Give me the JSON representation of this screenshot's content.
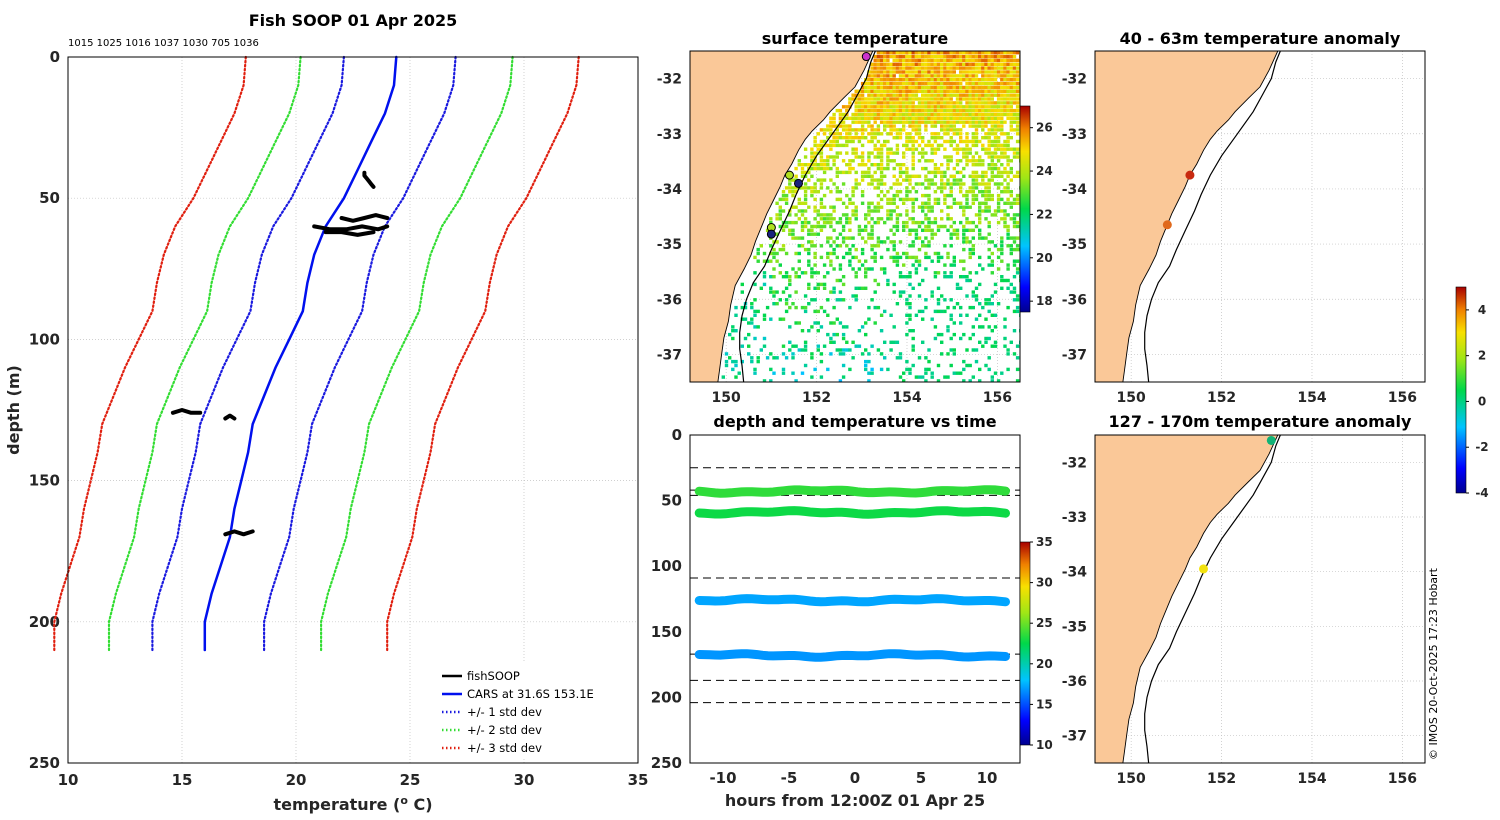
{
  "figure_title": "Fish SOOP 01 Apr 2025",
  "copyright": "© IMOS 20-Oct-2025 17:23 Hobart",
  "colors": {
    "land": "#fac898",
    "grid": "#c0c0c0",
    "cars": "#0010ee",
    "std1": "#1a1adf",
    "std2": "#33dd33",
    "std3": "#e02010",
    "obs": "#000000"
  },
  "chart_data": [
    {
      "id": "profile",
      "type": "line",
      "title": "Fish SOOP 01 Apr 2025",
      "xlabel": "temperature (",
      "xlabel_sup": "o",
      "xlabel_tail": " C)",
      "ylabel": "depth (m)",
      "xlim": [
        10,
        35
      ],
      "ylim": [
        0,
        250
      ],
      "y_inverted": true,
      "xticks": [
        10,
        15,
        20,
        25,
        30,
        35
      ],
      "yticks": [
        0,
        50,
        100,
        150,
        200,
        250
      ],
      "grid": true,
      "top_labels": "1015 1025 1016 1037 1030 705 1036",
      "cars_depth": [
        0,
        10,
        20,
        30,
        40,
        50,
        60,
        70,
        80,
        90,
        100,
        110,
        120,
        130,
        140,
        150,
        160,
        170,
        180,
        190,
        200,
        210
      ],
      "cars_temp": [
        24.4,
        24.3,
        23.9,
        23.3,
        22.7,
        22.1,
        21.3,
        20.8,
        20.5,
        20.3,
        19.7,
        19.1,
        18.6,
        18.1,
        17.9,
        17.6,
        17.3,
        17.1,
        16.7,
        16.3,
        16.0,
        16.0
      ],
      "std_offsets": [
        -6.6,
        -4.2,
        -2.3,
        2.6,
        5.1,
        8.0
      ],
      "std_colors": [
        "std3",
        "std2",
        "std1",
        "std1",
        "std2",
        "std3"
      ],
      "observations": [
        {
          "t": [
            23.0,
            23.0,
            23.1,
            23.2,
            23.3,
            23.4
          ],
          "d": [
            41,
            42,
            43,
            44,
            45,
            46
          ]
        },
        {
          "t": [
            22.0,
            22.5,
            23.0,
            23.5,
            24.0
          ],
          "d": [
            57,
            58,
            57,
            56,
            57
          ]
        },
        {
          "t": [
            20.8,
            21.5,
            22.2,
            22.9,
            23.6,
            24.0
          ],
          "d": [
            60,
            61,
            61,
            60,
            61,
            60
          ]
        },
        {
          "t": [
            21.3,
            22.0,
            22.7,
            23.4
          ],
          "d": [
            62,
            62,
            63,
            62
          ]
        },
        {
          "t": [
            14.6,
            15.0,
            15.4,
            15.8
          ],
          "d": [
            126,
            125,
            126,
            126
          ]
        },
        {
          "t": [
            16.9,
            17.1,
            17.3
          ],
          "d": [
            128,
            127,
            128
          ]
        },
        {
          "t": [
            16.9,
            17.3,
            17.7,
            18.1
          ],
          "d": [
            169,
            168,
            169,
            168
          ]
        }
      ],
      "legend": {
        "placement": "bottom-right",
        "entries": [
          {
            "label": "fishSOOP",
            "color": "obs",
            "style": "solid"
          },
          {
            "label": "CARS at 31.6S 153.1E",
            "color": "cars",
            "style": "solid"
          },
          {
            "label": "+/- 1 std dev",
            "color": "std1",
            "style": "dotted"
          },
          {
            "label": "+/- 2 std dev",
            "color": "std2",
            "style": "dotted"
          },
          {
            "label": "+/- 3 std dev",
            "color": "std3",
            "style": "dotted"
          }
        ]
      }
    },
    {
      "id": "sst",
      "type": "heatmap",
      "title": "surface temperature",
      "xlim": [
        149.2,
        156.5
      ],
      "ylim": [
        -37.5,
        -31.5
      ],
      "xticks": [
        150,
        152,
        154,
        156
      ],
      "yticks": [
        -32,
        -33,
        -34,
        -35,
        -36,
        -37
      ],
      "colorbar": {
        "range": [
          17.5,
          27
        ],
        "ticks": [
          18,
          20,
          22,
          24,
          26
        ]
      },
      "markers": [
        {
          "lon": 153.1,
          "lat": -31.6,
          "color": "#cc33cc"
        },
        {
          "lon": 151.4,
          "lat": -33.75,
          "color": "#b0e020"
        },
        {
          "lon": 151.6,
          "lat": -33.9,
          "color": "#1a237e"
        },
        {
          "lon": 151.0,
          "lat": -34.7,
          "color": "#b0e020"
        },
        {
          "lon": 151.0,
          "lat": -34.82,
          "color": "#1a237e"
        }
      ]
    },
    {
      "id": "anom40",
      "type": "scatter",
      "title": "40 - 63m temperature anomaly",
      "xlim": [
        149.2,
        156.5
      ],
      "ylim": [
        -37.5,
        -31.5
      ],
      "xticks": [
        150,
        152,
        154,
        156
      ],
      "yticks": [
        -32,
        -33,
        -34,
        -35,
        -36,
        -37
      ],
      "points": [
        {
          "lon": 151.3,
          "lat": -33.75,
          "color": "#c82a10"
        },
        {
          "lon": 150.8,
          "lat": -34.65,
          "color": "#e0691c"
        }
      ]
    },
    {
      "id": "anom127",
      "type": "scatter",
      "title": "127 - 170m temperature anomaly",
      "xlim": [
        149.2,
        156.5
      ],
      "ylim": [
        -37.5,
        -31.5
      ],
      "xticks": [
        150,
        152,
        154,
        156
      ],
      "yticks": [
        -32,
        -33,
        -34,
        -35,
        -36,
        -37
      ],
      "points": [
        {
          "lon": 153.1,
          "lat": -31.6,
          "color": "#12b377"
        },
        {
          "lon": 151.6,
          "lat": -33.95,
          "color": "#f2e20f"
        }
      ]
    },
    {
      "id": "anom_colorbar",
      "type": "heatmap",
      "range": [
        -4,
        5
      ],
      "ticks": [
        4,
        2,
        0,
        -2,
        -4
      ]
    },
    {
      "id": "timeseries",
      "type": "scatter",
      "title": "depth and temperature vs time",
      "xlabel": "hours from 12:00Z 01 Apr 25",
      "xlim": [
        -12.5,
        12.5
      ],
      "ylim": [
        0,
        250
      ],
      "y_inverted": true,
      "xticks": [
        -10,
        -5,
        0,
        5,
        10
      ],
      "yticks": [
        0,
        50,
        100,
        150,
        200,
        250
      ],
      "dashed_depths": [
        25,
        42,
        46,
        109,
        167,
        187,
        204
      ],
      "bands": [
        {
          "depth": 43,
          "temp": 23.6
        },
        {
          "depth": 59,
          "temp": 22.8
        },
        {
          "depth": 126,
          "temp": 17.2
        },
        {
          "depth": 168,
          "temp": 16.8
        }
      ],
      "colorbar": {
        "range": [
          10,
          35
        ],
        "ticks": [
          10,
          15,
          20,
          25,
          30,
          35
        ]
      }
    }
  ]
}
